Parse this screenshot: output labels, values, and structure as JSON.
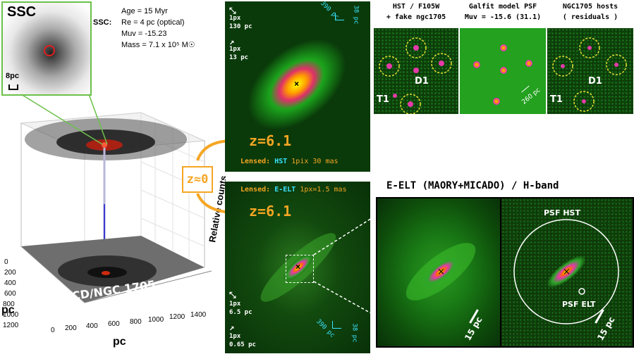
{
  "ssc": {
    "title": "SSC",
    "label": "SSC:",
    "lines": [
      "Age = 15 Myr",
      "Re = 4 pc (optical)",
      "Muv = -15.23",
      "Mass = 7.1 x 10⁵ M☉"
    ],
    "scale": "8pc"
  },
  "plot3d": {
    "object": "UCD/NGC 1705",
    "zlabel": "Relative counts",
    "xlabel": "pc",
    "ylabel": "pc",
    "xticks": [
      "0",
      "200",
      "400",
      "600",
      "800",
      "1000",
      "1200",
      "1400"
    ],
    "yticks": [
      "0",
      "200",
      "400",
      "600",
      "800",
      "1000",
      "1200"
    ]
  },
  "z_approx": "z≈0",
  "hst_panel": {
    "scale1_a": "1px",
    "scale1_b": "130 pc",
    "scale2_a": "1px",
    "scale2_b": "13 pc",
    "corner1": "390 pc",
    "corner2": "38 pc",
    "redshift": "z=6.1",
    "footer_lensed": "Lensed:",
    "footer_inst": "HST",
    "footer_rest": "1pix 30 mas"
  },
  "elt_panel": {
    "header_lensed": "Lensed:",
    "header_inst": "E-ELT",
    "header_rest": "1px=1.5 mas",
    "redshift": "z=6.1",
    "scale1_a": "1px",
    "scale1_b": "6.5 pc",
    "scale2_a": "1px",
    "scale2_b": "0.65 pc",
    "corner1": "390 pc",
    "corner2": "38 pc"
  },
  "hst_row": {
    "col1_title1": "HST / F105W",
    "col1_title2": "+ fake ngc1705",
    "col2_title1": "Galfit model PSF",
    "col2_title2": "Muv = -15.6 (31.1)",
    "col3_title1": "NGC1705 hosts",
    "col3_title2": "( residuals )",
    "d1": "D1",
    "t1": "T1",
    "scale": "260 pc"
  },
  "elt_zoom": {
    "title": "E-ELT (MAORY+MICADO)  /  H-band",
    "scale_left": "15 pc",
    "scale_right": "15 pc",
    "psf_hst": "PSF HST",
    "psf_elt": "PSF ELT"
  },
  "colors": {
    "orange": "#f5a623",
    "cyan": "#39e3ff",
    "green_bg": "#0f3a0a",
    "ssc_frame": "#6cc04a"
  }
}
